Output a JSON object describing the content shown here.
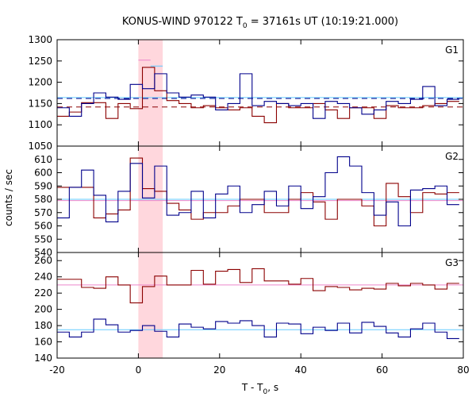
{
  "chart_data": {
    "type": "line",
    "title_prefix": "KONUS-WIND 970122 T",
    "title_sub": "0",
    "title_suffix": " = 37161s UT (10:19:21.000)",
    "xlabel_prefix": "T - T",
    "xlabel_sub": "0",
    "xlabel_suffix": ", s",
    "ylabel": "counts / sec",
    "xlim": [
      -20,
      80
    ],
    "xticks": [
      "-20",
      "0",
      "20",
      "40",
      "60",
      "80"
    ],
    "highlight_x": [
      0,
      6
    ],
    "colors": {
      "red_series": "#8b0000",
      "blue_series": "#00008b",
      "light_blue": "#66ccff",
      "pink": "#ee88cc",
      "highlight": "#ffb6c1",
      "frame": "#000000"
    },
    "panels": [
      {
        "label": "G1",
        "ylim": [
          1050,
          1300
        ],
        "yticks": [
          1050,
          1100,
          1150,
          1200,
          1250,
          1300
        ],
        "series": [
          {
            "color": "red_series",
            "edges": [
              -20,
              -17,
              -14,
              -11,
              -8,
              -5,
              -2,
              1,
              4,
              7,
              10,
              13,
              16,
              19,
              22,
              25,
              28,
              31,
              34,
              37,
              40,
              43,
              46,
              49,
              52,
              55,
              58,
              61,
              64,
              67,
              70,
              73,
              76,
              79
            ],
            "values": [
              1120,
              1130,
              1152,
              1152,
              1115,
              1150,
              1138,
              1235,
              1180,
              1157,
              1150,
              1140,
              1145,
              1140,
              1135,
              1140,
              1120,
              1105,
              1150,
              1140,
              1140,
              1150,
              1135,
              1115,
              1140,
              1140,
              1115,
              1145,
              1140,
              1140,
              1145,
              1150,
              1155
            ]
          },
          {
            "color": "blue_series",
            "edges": [
              -20,
              -17,
              -14,
              -11,
              -8,
              -5,
              -2,
              1,
              4,
              7,
              10,
              13,
              16,
              19,
              22,
              25,
              28,
              31,
              34,
              37,
              40,
              43,
              46,
              49,
              52,
              55,
              58,
              61,
              64,
              67,
              70,
              73,
              76,
              79
            ],
            "values": [
              1140,
              1120,
              1150,
              1175,
              1165,
              1160,
              1195,
              1185,
              1220,
              1175,
              1165,
              1170,
              1165,
              1135,
              1150,
              1220,
              1145,
              1155,
              1150,
              1145,
              1150,
              1115,
              1155,
              1150,
              1140,
              1125,
              1135,
              1155,
              1150,
              1160,
              1190,
              1145,
              1160
            ]
          },
          {
            "color": "pink",
            "edges": [
              0,
              3
            ],
            "values": [
              1252
            ]
          },
          {
            "color": "light_blue",
            "edges": [
              3,
              6
            ],
            "values": [
              1238
            ]
          }
        ],
        "reference_lines": [
          {
            "color": "red_series",
            "y": 1142,
            "dashed": true
          },
          {
            "color": "blue_series",
            "y": 1162,
            "dashed": true
          },
          {
            "color": "light_blue",
            "y": 1164,
            "dashed": false
          }
        ]
      },
      {
        "label": "G2",
        "ylim": [
          540,
          620
        ],
        "yticks": [
          540,
          550,
          560,
          570,
          580,
          590,
          600,
          610
        ],
        "series": [
          {
            "color": "red_series",
            "edges": [
              -20,
              -17,
              -14,
              -11,
              -8,
              -5,
              -2,
              1,
              4,
              7,
              10,
              13,
              16,
              19,
              22,
              25,
              28,
              31,
              34,
              37,
              40,
              43,
              46,
              49,
              52,
              55,
              58,
              61,
              64,
              67,
              70,
              73,
              76,
              79
            ],
            "values": [
              589,
              589,
              589,
              566,
              569,
              572,
              611,
              588,
              586,
              577,
              572,
              565,
              570,
              570,
              575,
              580,
              580,
              570,
              570,
              580,
              585,
              578,
              565,
              580,
              580,
              575,
              560,
              592,
              582,
              570,
              585,
              584,
              585
            ]
          },
          {
            "color": "blue_series",
            "edges": [
              -20,
              -17,
              -14,
              -11,
              -8,
              -5,
              -2,
              1,
              4,
              7,
              10,
              13,
              16,
              19,
              22,
              25,
              28,
              31,
              34,
              37,
              40,
              43,
              46,
              49,
              52,
              55,
              58,
              61,
              64,
              67,
              70,
              73,
              76,
              79
            ],
            "values": [
              566,
              589,
              602,
              583,
              563,
              586,
              607,
              581,
              605,
              568,
              570,
              586,
              566,
              584,
              590,
              570,
              576,
              586,
              575,
              590,
              573,
              582,
              600,
              612,
              605,
              585,
              568,
              578,
              560,
              587,
              588,
              590,
              576
            ]
          }
        ],
        "reference_lines": [
          {
            "color": "pink",
            "y": 579,
            "dashed": false
          },
          {
            "color": "light_blue",
            "y": 580,
            "dashed": false
          }
        ]
      },
      {
        "label": "G3",
        "ylim": [
          140,
          270
        ],
        "yticks": [
          140,
          160,
          180,
          200,
          220,
          240,
          260
        ],
        "series": [
          {
            "color": "red_series",
            "edges": [
              -20,
              -17,
              -14,
              -11,
              -8,
              -5,
              -2,
              1,
              4,
              7,
              10,
              13,
              16,
              19,
              22,
              25,
              28,
              31,
              34,
              37,
              40,
              43,
              46,
              49,
              52,
              55,
              58,
              61,
              64,
              67,
              70,
              73,
              76,
              79
            ],
            "values": [
              237,
              237,
              227,
              226,
              240,
              230,
              208,
              228,
              241,
              230,
              230,
              248,
              231,
              247,
              249,
              233,
              250,
              235,
              235,
              231,
              238,
              223,
              228,
              227,
              224,
              226,
              225,
              232,
              229,
              232,
              230,
              225,
              232
            ]
          },
          {
            "color": "blue_series",
            "edges": [
              -20,
              -17,
              -14,
              -11,
              -8,
              -5,
              -2,
              1,
              4,
              7,
              10,
              13,
              16,
              19,
              22,
              25,
              28,
              31,
              34,
              37,
              40,
              43,
              46,
              49,
              52,
              55,
              58,
              61,
              64,
              67,
              70,
              73,
              76,
              79
            ],
            "values": [
              172,
              166,
              172,
              188,
              181,
              172,
              174,
              180,
              173,
              166,
              182,
              178,
              176,
              185,
              183,
              186,
              180,
              166,
              183,
              182,
              170,
              178,
              174,
              183,
              171,
              184,
              179,
              171,
              166,
              176,
              183,
              172,
              164
            ]
          }
        ],
        "reference_lines": [
          {
            "color": "pink",
            "y": 230,
            "dashed": false
          },
          {
            "color": "light_blue",
            "y": 175,
            "dashed": false
          }
        ]
      }
    ]
  }
}
